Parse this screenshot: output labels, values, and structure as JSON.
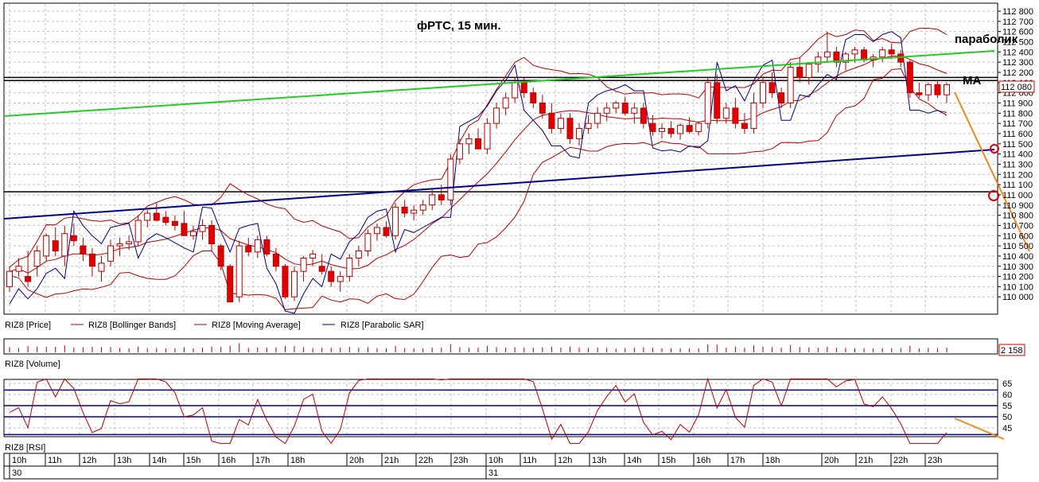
{
  "chart_data": {
    "type": "candlestick",
    "title": "фРТС, 15 мин.",
    "instrument": "RIZ8",
    "annotations": {
      "parabolic": "параболик",
      "ma": "MA"
    },
    "legend": [
      "RIZ8 [Price]",
      "RIZ8 [Bollinger Bands]",
      "RIZ8 [Moving Average]",
      "RIZ8 [Parabolic SAR]"
    ],
    "price_axis": {
      "ylim": [
        109900,
        112850
      ],
      "ticks": [
        "112 800",
        "112 700",
        "112 600",
        "112 500",
        "112 400",
        "112 300",
        "112 200",
        "112 100",
        "112 000",
        "111 900",
        "111 800",
        "111 700",
        "111 600",
        "111 500",
        "111 400",
        "111 300",
        "111 200",
        "111 100",
        "111 000",
        "110 900",
        "110 800",
        "110 700",
        "110 600",
        "110 500",
        "110 400",
        "110 300",
        "110 200",
        "110 100",
        "110 000"
      ],
      "last_price": "112 080"
    },
    "volume": {
      "label": "RIZ8 [Volume]",
      "last_value": "2 158"
    },
    "rsi": {
      "label": "RIZ8 [RSI]",
      "ticks": [
        "65",
        "60",
        "55",
        "50",
        "45"
      ],
      "levels": [
        62,
        55,
        50,
        42
      ]
    },
    "time_axis": {
      "hours": [
        "10h",
        "11h",
        "12h",
        "13h",
        "14h",
        "15h",
        "16h",
        "17h",
        "18h",
        "20h",
        "21h",
        "22h",
        "23h",
        "10h",
        "11h",
        "12h",
        "13h",
        "14h",
        "15h",
        "16h",
        "17h",
        "18h",
        "20h",
        "21h",
        "22h",
        "23h"
      ],
      "dates": [
        "30",
        "31"
      ]
    },
    "horizontal_levels": [
      112150,
      112120,
      111030
    ],
    "candles": [
      [
        110100,
        110300,
        110050,
        110250
      ],
      [
        110250,
        110380,
        110200,
        110300
      ],
      [
        110200,
        110450,
        110100,
        110150
      ],
      [
        110300,
        110500,
        110200,
        110450
      ],
      [
        110400,
        110620,
        110350,
        110600
      ],
      [
        110550,
        110680,
        110400,
        110450
      ],
      [
        110400,
        110700,
        110300,
        110620
      ],
      [
        110600,
        110720,
        110500,
        110550
      ],
      [
        110500,
        110580,
        110350,
        110420
      ],
      [
        110420,
        110480,
        110200,
        110300
      ],
      [
        110250,
        110400,
        110150,
        110330
      ],
      [
        110350,
        110560,
        110300,
        110500
      ],
      [
        110500,
        110580,
        110400,
        110520
      ],
      [
        110520,
        110600,
        110460,
        110540
      ],
      [
        110540,
        110800,
        110500,
        110750
      ],
      [
        110750,
        110850,
        110680,
        110820
      ],
      [
        110820,
        110920,
        110740,
        110750
      ],
      [
        110780,
        110840,
        110700,
        110730
      ],
      [
        110740,
        110800,
        110650,
        110700
      ],
      [
        110720,
        110840,
        110600,
        110600
      ],
      [
        110600,
        110700,
        110560,
        110640
      ],
      [
        110640,
        110760,
        110560,
        110700
      ],
      [
        110700,
        110750,
        110450,
        110520
      ],
      [
        110500,
        110520,
        110260,
        110300
      ],
      [
        110300,
        110320,
        109950,
        109950
      ],
      [
        110000,
        110550,
        109950,
        110500
      ],
      [
        110500,
        110580,
        110400,
        110440
      ],
      [
        110440,
        110600,
        110380,
        110560
      ],
      [
        110560,
        110600,
        110400,
        110420
      ],
      [
        110420,
        110480,
        110250,
        110300
      ],
      [
        110300,
        110320,
        109980,
        110000
      ],
      [
        110000,
        110300,
        109960,
        110250
      ],
      [
        110250,
        110400,
        110150,
        110380
      ],
      [
        110380,
        110460,
        110300,
        110420
      ],
      [
        110300,
        110420,
        110220,
        110250
      ],
      [
        110250,
        110300,
        110100,
        110150
      ],
      [
        110150,
        110250,
        110050,
        110200
      ],
      [
        110200,
        110420,
        110150,
        110380
      ],
      [
        110380,
        110500,
        110300,
        110450
      ],
      [
        110450,
        110660,
        110400,
        110620
      ],
      [
        110620,
        110720,
        110550,
        110680
      ],
      [
        110680,
        110740,
        110580,
        110600
      ],
      [
        110600,
        110920,
        110560,
        110880
      ],
      [
        110880,
        110950,
        110780,
        110820
      ],
      [
        110820,
        110900,
        110750,
        110850
      ],
      [
        110850,
        110950,
        110800,
        110900
      ],
      [
        110900,
        111050,
        110850,
        111000
      ],
      [
        111000,
        111100,
        110900,
        110950
      ],
      [
        110950,
        111400,
        110900,
        111350
      ],
      [
        111350,
        111550,
        111300,
        111500
      ],
      [
        111500,
        111600,
        111400,
        111550
      ],
      [
        111550,
        111650,
        111450,
        111450
      ],
      [
        111450,
        111750,
        111400,
        111700
      ],
      [
        111700,
        111900,
        111650,
        111850
      ],
      [
        111850,
        112000,
        111780,
        111950
      ],
      [
        111950,
        112150,
        111900,
        112100
      ],
      [
        112100,
        112150,
        111950,
        112000
      ],
      [
        112000,
        112050,
        111850,
        111900
      ],
      [
        111900,
        111980,
        111750,
        111800
      ],
      [
        111800,
        111900,
        111600,
        111650
      ],
      [
        111650,
        111800,
        111600,
        111750
      ],
      [
        111750,
        111800,
        111500,
        111550
      ],
      [
        111550,
        111700,
        111480,
        111650
      ],
      [
        111650,
        111780,
        111600,
        111700
      ],
      [
        111700,
        111860,
        111650,
        111800
      ],
      [
        111800,
        111900,
        111720,
        111850
      ],
      [
        111850,
        111920,
        111800,
        111900
      ],
      [
        111900,
        111960,
        111780,
        111800
      ],
      [
        111800,
        111900,
        111700,
        111850
      ],
      [
        111850,
        111900,
        111650,
        111700
      ],
      [
        111700,
        111780,
        111580,
        111620
      ],
      [
        111620,
        111700,
        111550,
        111650
      ],
      [
        111650,
        111720,
        111560,
        111600
      ],
      [
        111600,
        111700,
        111540,
        111680
      ],
      [
        111680,
        111760,
        111600,
        111620
      ],
      [
        111620,
        111720,
        111580,
        111700
      ],
      [
        111700,
        112150,
        111650,
        112100
      ],
      [
        112100,
        112180,
        111700,
        111750
      ],
      [
        111750,
        111900,
        111700,
        111850
      ],
      [
        111850,
        111950,
        111650,
        111700
      ],
      [
        111700,
        111800,
        111600,
        111650
      ],
      [
        111650,
        112000,
        111600,
        111900
      ],
      [
        111900,
        112150,
        111850,
        112100
      ],
      [
        112100,
        112200,
        111950,
        112000
      ],
      [
        112000,
        112050,
        111850,
        111900
      ],
      [
        111900,
        112300,
        111850,
        112250
      ],
      [
        112250,
        112350,
        112100,
        112150
      ],
      [
        112150,
        112300,
        112080,
        112280
      ],
      [
        112280,
        112400,
        112200,
        112350
      ],
      [
        112350,
        112600,
        112300,
        112400
      ],
      [
        112400,
        112450,
        112250,
        112300
      ],
      [
        112300,
        112400,
        112220,
        112380
      ],
      [
        112380,
        112450,
        112300,
        112420
      ],
      [
        112420,
        112450,
        112300,
        112320
      ],
      [
        112320,
        112380,
        112250,
        112350
      ],
      [
        112350,
        112450,
        112300,
        112420
      ],
      [
        112420,
        112480,
        112330,
        112380
      ],
      [
        112380,
        112420,
        112250,
        112300
      ],
      [
        112300,
        112320,
        111950,
        112000
      ],
      [
        112000,
        112100,
        111950,
        111980
      ],
      [
        111980,
        112100,
        111920,
        112080
      ],
      [
        112080,
        112120,
        111950,
        111980
      ],
      [
        111980,
        112100,
        111900,
        112080
      ]
    ]
  }
}
